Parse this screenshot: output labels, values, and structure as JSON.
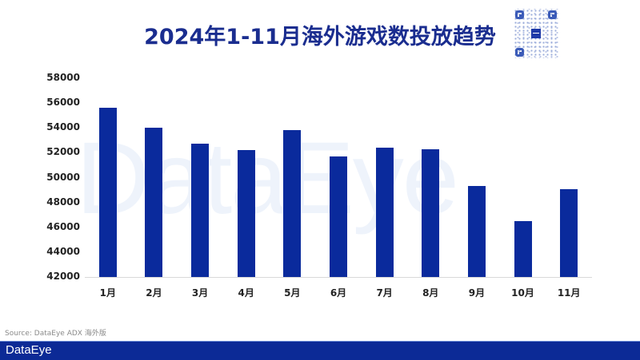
{
  "title": "2024年1-11月海外游戏数投放趋势",
  "watermark": "DataEye",
  "qr_code": {
    "icon": "qr-code-icon"
  },
  "source": "Source: DataEye ADX 海外版",
  "footer": {
    "logo": "DataEye",
    "color": "#0c2a96"
  },
  "colors": {
    "bar": "#0a2a9c",
    "title": "#1a2d8f"
  },
  "y_ticks": [
    "58000",
    "56000",
    "54000",
    "52000",
    "50000",
    "48000",
    "46000",
    "44000",
    "42000"
  ],
  "x_labels": [
    "1月",
    "2月",
    "3月",
    "4月",
    "5月",
    "6月",
    "7月",
    "8月",
    "9月",
    "10月",
    "11月"
  ],
  "chart_data": {
    "type": "bar",
    "title": "2024年1-11月海外游戏数投放趋势",
    "xlabel": "",
    "ylabel": "",
    "categories": [
      "1月",
      "2月",
      "3月",
      "4月",
      "5月",
      "6月",
      "7月",
      "8月",
      "9月",
      "10月",
      "11月"
    ],
    "values": [
      55600,
      54000,
      52700,
      52200,
      53800,
      51700,
      52400,
      52300,
      49300,
      46500,
      49100
    ],
    "ylim": [
      42000,
      58000
    ],
    "yticks": [
      42000,
      44000,
      46000,
      48000,
      50000,
      52000,
      54000,
      56000,
      58000
    ],
    "grid": false,
    "legend": null,
    "source": "Source: DataEye ADX 海外版"
  }
}
